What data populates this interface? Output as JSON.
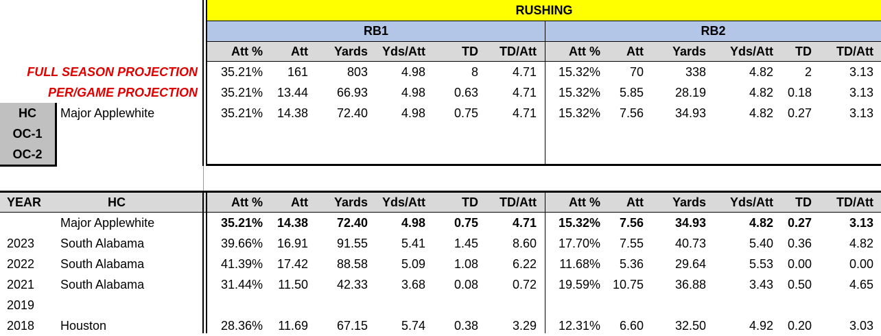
{
  "colors": {
    "rushing_banner": "#ffff00",
    "rb_header": "#b4c6e7",
    "column_header": "#d9d9d9",
    "projection_label": "#e00000",
    "hc_box": "#c0c0c0"
  },
  "banner": {
    "title": "RUSHING"
  },
  "groups": [
    "RB1",
    "RB2"
  ],
  "columns": [
    "Att %",
    "Att",
    "Yards",
    "Yds/Att",
    "TD",
    "TD/Att"
  ],
  "hc_box": {
    "labels": [
      "HC",
      "OC-1",
      "OC-2"
    ]
  },
  "projections": [
    {
      "label": "FULL SEASON PROJECTION",
      "rb1": [
        "35.21%",
        "161",
        "803",
        "4.98",
        "8",
        "4.71"
      ],
      "rb2": [
        "15.32%",
        "70",
        "338",
        "4.82",
        "2",
        "3.13"
      ]
    },
    {
      "label": "PER/GAME PROJECTION",
      "rb1": [
        "35.21%",
        "13.44",
        "66.93",
        "4.98",
        "0.63",
        "4.71"
      ],
      "rb2": [
        "15.32%",
        "5.85",
        "28.19",
        "4.82",
        "0.18",
        "3.13"
      ]
    }
  ],
  "coach_row": {
    "name": "Major Applewhite",
    "rb1": [
      "35.21%",
      "14.38",
      "72.40",
      "4.98",
      "0.75",
      "4.71"
    ],
    "rb2": [
      "15.32%",
      "7.56",
      "34.93",
      "4.82",
      "0.27",
      "3.13"
    ]
  },
  "history_header": {
    "year": "YEAR",
    "hc": "HC"
  },
  "history": [
    {
      "year": "",
      "hc": "Major Applewhite",
      "bold": true,
      "rb1": [
        "35.21%",
        "14.38",
        "72.40",
        "4.98",
        "0.75",
        "4.71"
      ],
      "rb2": [
        "15.32%",
        "7.56",
        "34.93",
        "4.82",
        "0.27",
        "3.13"
      ]
    },
    {
      "year": "2023",
      "hc": "South Alabama",
      "bold": false,
      "rb1": [
        "39.66%",
        "16.91",
        "91.55",
        "5.41",
        "1.45",
        "8.60"
      ],
      "rb2": [
        "17.70%",
        "7.55",
        "40.73",
        "5.40",
        "0.36",
        "4.82"
      ]
    },
    {
      "year": "2022",
      "hc": "South Alabama",
      "bold": false,
      "rb1": [
        "41.39%",
        "17.42",
        "88.58",
        "5.09",
        "1.08",
        "6.22"
      ],
      "rb2": [
        "11.68%",
        "5.36",
        "29.64",
        "5.53",
        "0.00",
        "0.00"
      ]
    },
    {
      "year": "2021",
      "hc": "South Alabama",
      "bold": false,
      "rb1": [
        "31.44%",
        "11.50",
        "42.33",
        "3.68",
        "0.08",
        "0.72"
      ],
      "rb2": [
        "19.59%",
        "10.75",
        "36.88",
        "3.43",
        "0.50",
        "4.65"
      ]
    },
    {
      "year": "2019",
      "hc": "",
      "bold": false,
      "rb1": [
        "",
        "",
        "",
        "",
        "",
        ""
      ],
      "rb2": [
        "",
        "",
        "",
        "",
        "",
        ""
      ]
    },
    {
      "year": "2018",
      "hc": "Houston",
      "bold": false,
      "rb1": [
        "28.36%",
        "11.69",
        "67.15",
        "5.74",
        "0.38",
        "3.29"
      ],
      "rb2": [
        "12.31%",
        "6.60",
        "32.50",
        "4.92",
        "0.20",
        "3.03"
      ]
    }
  ]
}
